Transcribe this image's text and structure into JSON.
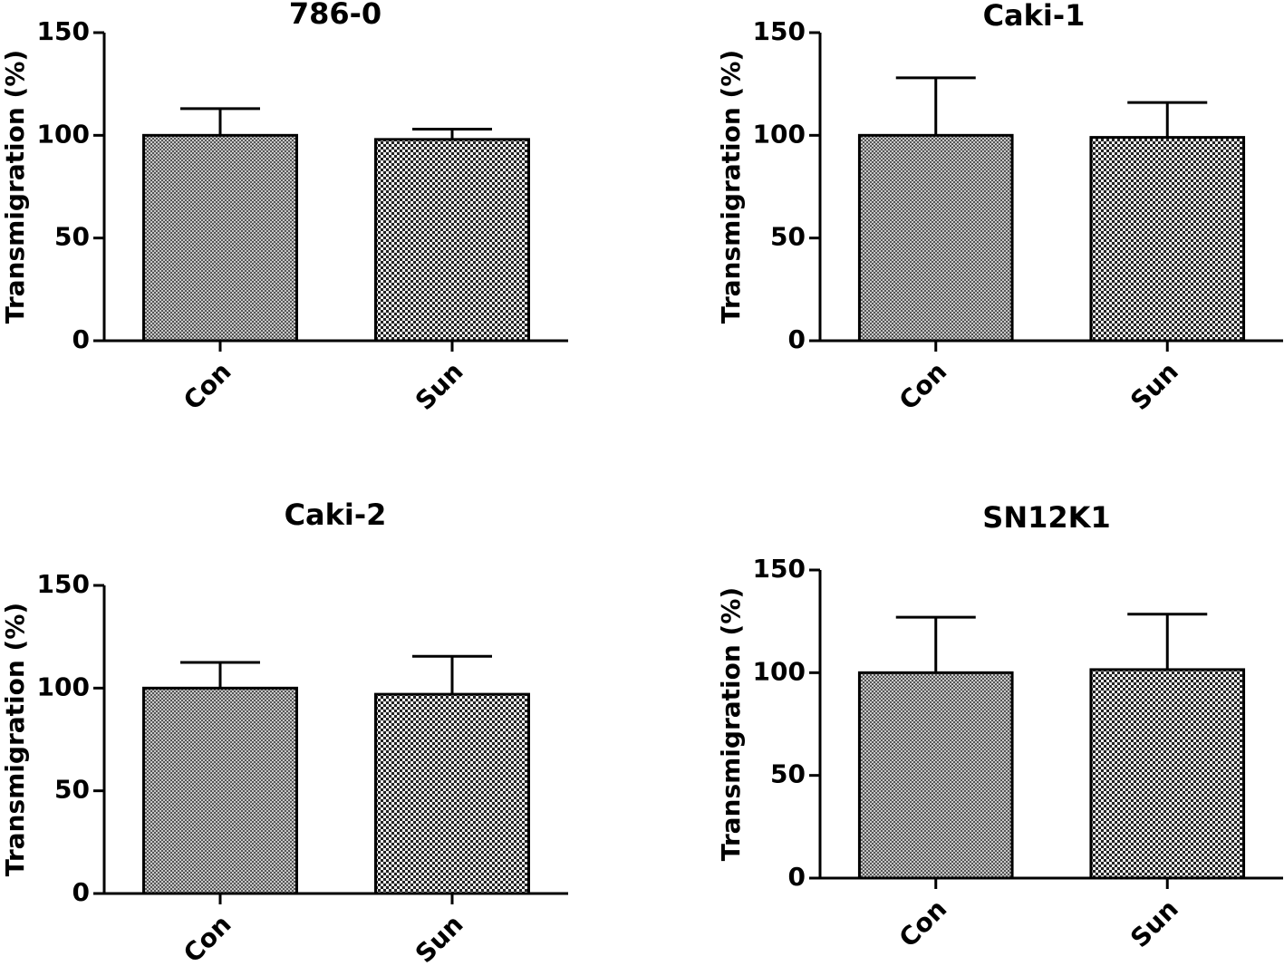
{
  "chart_data": [
    {
      "type": "bar",
      "title": "786-0",
      "y_label": "Transmigration (%)",
      "categories": [
        "Con",
        "Sun"
      ],
      "values": [
        100,
        98
      ],
      "errors": [
        13,
        5
      ],
      "ylim": [
        0,
        150
      ],
      "yticks": [
        0,
        50,
        100,
        150
      ]
    },
    {
      "type": "bar",
      "title": "Caki-1",
      "y_label": "Transmigration (%)",
      "categories": [
        "Con",
        "Sun"
      ],
      "values": [
        100,
        99
      ],
      "errors": [
        28,
        17
      ],
      "ylim": [
        0,
        150
      ],
      "yticks": [
        0,
        50,
        100,
        150
      ]
    },
    {
      "type": "bar",
      "title": "Caki-2",
      "y_label": "Transmigration (%)",
      "categories": [
        "Con",
        "Sun"
      ],
      "values": [
        100,
        97
      ],
      "errors": [
        12.5,
        18.5
      ],
      "ylim": [
        0,
        150
      ],
      "yticks": [
        0,
        50,
        100,
        150
      ]
    },
    {
      "type": "bar",
      "title": "SN12K1",
      "y_label": "Transmigration (%)",
      "categories": [
        "Con",
        "Sun"
      ],
      "values": [
        100,
        101.5
      ],
      "errors": [
        27,
        27
      ],
      "ylim": [
        0,
        150
      ],
      "yticks": [
        0,
        50,
        100,
        150
      ]
    }
  ]
}
